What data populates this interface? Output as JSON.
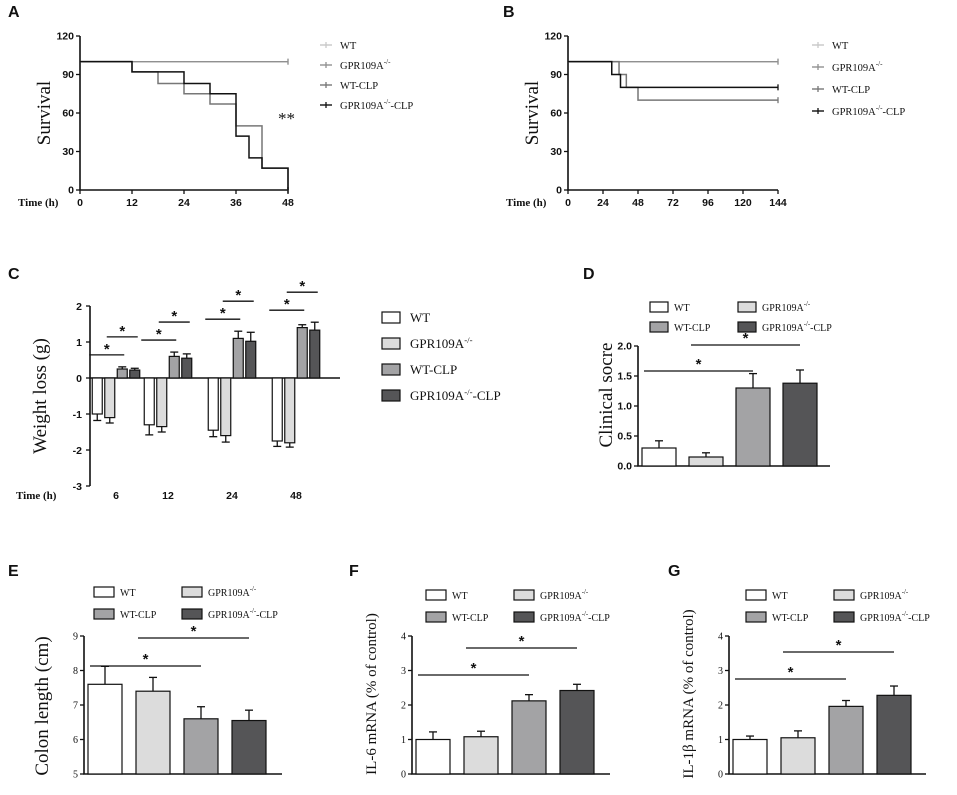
{
  "colors": {
    "WT": "#ffffff",
    "GPR109A-/-": "#dcdcdc",
    "WT-CLP": "#a3a3a5",
    "GPR109A-/--CLP": "#555557",
    "ink": "#111111",
    "survival_WT": "#c8c8c8",
    "survival_GPR109A": "#909090",
    "survival_WTCLP": "#777777",
    "survival_KOCLP": "#111111"
  },
  "chart_data": [
    {
      "panel": "A",
      "type": "line",
      "title": "",
      "xlabel": "Time (h)",
      "ylabel": "Survival",
      "xlim": [
        0,
        48
      ],
      "ylim": [
        0,
        120
      ],
      "xticks": [
        0,
        12,
        24,
        36,
        48
      ],
      "yticks": [
        0,
        30,
        60,
        90,
        120
      ],
      "legend": [
        "WT",
        "GPR109A-/-",
        "WT-CLP",
        "GPR109A-/--CLP"
      ],
      "series": [
        {
          "name": "WT",
          "x": [
            0,
            48
          ],
          "y": [
            100,
            100
          ],
          "color_key": "survival_WT"
        },
        {
          "name": "GPR109A-/-",
          "x": [
            0,
            48
          ],
          "y": [
            100,
            100
          ],
          "color_key": "survival_GPR109A"
        },
        {
          "name": "WT-CLP",
          "x": [
            0,
            12,
            18,
            24,
            30,
            36,
            42,
            48
          ],
          "y": [
            100,
            92,
            83,
            75,
            67,
            50,
            17,
            0
          ],
          "color_key": "survival_WTCLP"
        },
        {
          "name": "GPR109A-/--CLP",
          "x": [
            0,
            12,
            24,
            30,
            36,
            39,
            42,
            48
          ],
          "y": [
            100,
            92,
            83,
            75,
            42,
            25,
            17,
            0
          ],
          "color_key": "survival_KOCLP"
        }
      ],
      "annotation": "**"
    },
    {
      "panel": "B",
      "type": "line",
      "title": "",
      "xlabel": "Time (h)",
      "ylabel": "Survival",
      "xlim": [
        0,
        144
      ],
      "ylim": [
        0,
        120
      ],
      "xticks": [
        0,
        24,
        48,
        72,
        96,
        120,
        144
      ],
      "yticks": [
        0,
        30,
        60,
        90,
        120
      ],
      "legend": [
        "WT",
        "GPR109A-/-",
        "WT-CLP",
        "GPR109A-/--CLP"
      ],
      "series": [
        {
          "name": "WT",
          "x": [
            0,
            144
          ],
          "y": [
            100,
            100
          ],
          "color_key": "survival_WT"
        },
        {
          "name": "GPR109A-/-",
          "x": [
            0,
            144
          ],
          "y": [
            100,
            100
          ],
          "color_key": "survival_GPR109A"
        },
        {
          "name": "WT-CLP",
          "x": [
            0,
            35,
            40,
            48,
            144
          ],
          "y": [
            100,
            90,
            80,
            70,
            70
          ],
          "color_key": "survival_WTCLP"
        },
        {
          "name": "GPR109A-/--CLP",
          "x": [
            0,
            30,
            36,
            144
          ],
          "y": [
            100,
            90,
            80,
            80
          ],
          "color_key": "survival_KOCLP"
        }
      ]
    },
    {
      "panel": "C",
      "type": "bar",
      "title": "",
      "xlabel": "Time (h)",
      "ylabel": "Weight loss (g)",
      "ylim": [
        -3,
        2
      ],
      "yticks": [
        -3,
        -2,
        -1,
        0,
        1,
        2
      ],
      "categories": [
        "6",
        "12",
        "24",
        "48"
      ],
      "series": [
        {
          "name": "WT",
          "values": [
            -1.0,
            -1.3,
            -1.45,
            -1.75
          ],
          "errors": [
            0.18,
            0.28,
            0.18,
            0.15
          ]
        },
        {
          "name": "GPR109A-/-",
          "values": [
            -1.1,
            -1.35,
            -1.6,
            -1.8
          ],
          "errors": [
            0.15,
            0.15,
            0.18,
            0.12
          ]
        },
        {
          "name": "WT-CLP",
          "values": [
            0.25,
            0.6,
            1.1,
            1.4
          ],
          "errors": [
            0.06,
            0.12,
            0.2,
            0.08
          ]
        },
        {
          "name": "GPR109A-/--CLP",
          "values": [
            0.22,
            0.55,
            1.02,
            1.33
          ],
          "errors": [
            0.05,
            0.12,
            0.25,
            0.22
          ]
        }
      ],
      "significance": "*"
    },
    {
      "panel": "D",
      "type": "bar",
      "title": "",
      "xlabel": "",
      "ylabel": "Clinical socre",
      "ylim": [
        0,
        2.0
      ],
      "yticks": [
        "0.0",
        "0.5",
        "1.0",
        "1.5",
        "2.0"
      ],
      "categories": [
        "WT",
        "GPR109A-/-",
        "WT-CLP",
        "GPR109A-/--CLP"
      ],
      "values": [
        0.3,
        0.15,
        1.3,
        1.38
      ],
      "errors": [
        0.12,
        0.07,
        0.24,
        0.22
      ],
      "significance": "*"
    },
    {
      "panel": "E",
      "type": "bar",
      "title": "",
      "xlabel": "",
      "ylabel": "Colon length (cm)",
      "ylim": [
        5,
        9
      ],
      "yticks": [
        5,
        6,
        7,
        8,
        9
      ],
      "categories": [
        "WT",
        "GPR109A-/-",
        "WT-CLP",
        "GPR109A-/--CLP"
      ],
      "values": [
        7.6,
        7.4,
        6.6,
        6.55
      ],
      "errors": [
        0.52,
        0.4,
        0.35,
        0.3
      ],
      "significance": "*"
    },
    {
      "panel": "F",
      "type": "bar",
      "title": "",
      "xlabel": "",
      "ylabel": "IL-6 mRNA (% of control)",
      "ylim": [
        0,
        4
      ],
      "yticks": [
        0,
        1,
        2,
        3,
        4
      ],
      "categories": [
        "WT",
        "GPR109A-/-",
        "WT-CLP",
        "GPR109A-/--CLP"
      ],
      "values": [
        1.0,
        1.08,
        2.12,
        2.42
      ],
      "errors": [
        0.22,
        0.16,
        0.18,
        0.18
      ],
      "significance": "*"
    },
    {
      "panel": "G",
      "type": "bar",
      "title": "",
      "xlabel": "",
      "ylabel": "IL-1β mRNA (% of control)",
      "ylim": [
        0,
        4
      ],
      "yticks": [
        0,
        1,
        2,
        3,
        4
      ],
      "categories": [
        "WT",
        "GPR109A-/-",
        "WT-CLP",
        "GPR109A-/--CLP"
      ],
      "values": [
        1.0,
        1.05,
        1.96,
        2.28
      ],
      "errors": [
        0.1,
        0.2,
        0.17,
        0.27
      ],
      "significance": "*"
    }
  ],
  "panels": {
    "A": {
      "label": "A",
      "ylabel": "Survival",
      "xtitle": "Time (h)",
      "annotation": "**"
    },
    "B": {
      "label": "B",
      "ylabel": "Survival",
      "xtitle": "Time (h)"
    },
    "C": {
      "label": "C",
      "ylabel": "Weight loss (g)",
      "xtitle": "Time (h)"
    },
    "D": {
      "label": "D",
      "ylabel": "Clinical socre"
    },
    "E": {
      "label": "E",
      "ylabel": "Colon length (cm)"
    },
    "F": {
      "label": "F",
      "ylabel": "IL-6 mRNA (% of control)"
    },
    "G": {
      "label": "G",
      "ylabel": "IL-1β mRNA (% of control)"
    }
  },
  "legend_labels": {
    "wt": "WT",
    "ko_base": "GPR109A",
    "ko_sup": "-/-",
    "wtclp": "WT-CLP",
    "koclp_suffix": "-CLP"
  }
}
